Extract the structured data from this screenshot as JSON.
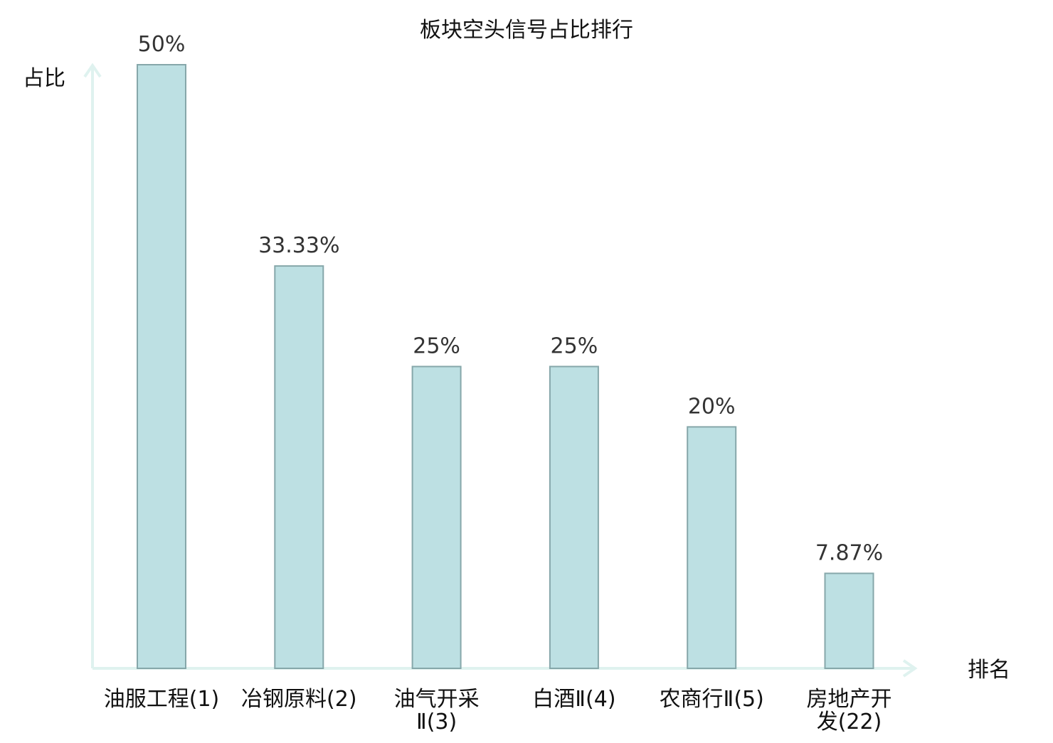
{
  "chart_data": {
    "type": "bar",
    "title": "板块空头信号占比排行",
    "ylabel": "占比",
    "xlabel": "排名",
    "ylim": [
      0,
      50
    ],
    "grid": false,
    "categories": [
      "油服工程(1)",
      "冶钢原料(2)",
      "油气开采Ⅱ(3)",
      "白酒Ⅱ(4)",
      "农商行Ⅱ(5)",
      "房地产开发(22)"
    ],
    "tick_lines": [
      [
        "油服工程(1)"
      ],
      [
        "冶钢原料(2)"
      ],
      [
        "油气开采",
        "Ⅱ(3)"
      ],
      [
        "白酒Ⅱ(4)"
      ],
      [
        "农商行Ⅱ(5)"
      ],
      [
        "房地产开",
        "发(22)"
      ]
    ],
    "values": [
      50,
      33.33,
      25,
      25,
      20,
      7.87
    ],
    "value_labels": [
      "50%",
      "33.33%",
      "25%",
      "25%",
      "20%",
      "7.87%"
    ],
    "highlight_index": 5,
    "colors": {
      "bar_fill": "#bde0e3",
      "bar_stroke": "#86a7aa",
      "axis": "#dff2ef",
      "highlight_text": "#e00000",
      "text": "#111111",
      "value_text": "#333333"
    }
  }
}
